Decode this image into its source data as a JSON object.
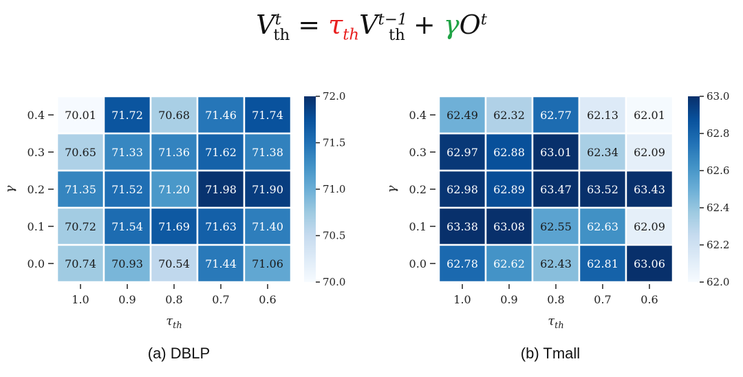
{
  "formula": {
    "lhs_var": "V",
    "lhs_sub": "th",
    "lhs_sup": "t",
    "eq": "=",
    "tau": "τ",
    "tau_sub": "th",
    "rhs_var": "V",
    "rhs_sub": "th",
    "rhs_sup": "t−1",
    "plus": "+",
    "gamma": "γ",
    "o_var": "O",
    "o_sup": "t",
    "tau_color": "#e8201f",
    "gamma_color": "#1fa345"
  },
  "colormap": "Blues",
  "chart_data": [
    {
      "type": "heatmap",
      "caption": "(a) DBLP",
      "xlabel": "τ_th",
      "ylabel": "γ",
      "x_categories": [
        "1.0",
        "0.9",
        "0.8",
        "0.7",
        "0.6"
      ],
      "y_categories": [
        "0.4",
        "0.3",
        "0.2",
        "0.1",
        "0.0"
      ],
      "values": [
        [
          70.01,
          71.72,
          70.68,
          71.46,
          71.74
        ],
        [
          70.65,
          71.33,
          71.36,
          71.62,
          71.38
        ],
        [
          71.35,
          71.52,
          71.2,
          71.98,
          71.9
        ],
        [
          70.72,
          71.54,
          71.69,
          71.63,
          71.4
        ],
        [
          70.74,
          70.93,
          70.54,
          71.44,
          71.06
        ]
      ],
      "cell_labels": [
        [
          "70.01",
          "71.72",
          "70.68",
          "71.46",
          "71.74"
        ],
        [
          "70.65",
          "71.33",
          "71.36",
          "71.62",
          "71.38"
        ],
        [
          "71.35",
          "71.52",
          "71.20",
          "71.98",
          "71.90"
        ],
        [
          "70.72",
          "71.54",
          "71.69",
          "71.63",
          "71.40"
        ],
        [
          "70.74",
          "70.93",
          "70.54",
          "71.44",
          "71.06"
        ]
      ],
      "vmin": 70.0,
      "vmax": 72.0,
      "colorbar_ticks": [
        70.0,
        70.5,
        71.0,
        71.5,
        72.0
      ],
      "colorbar_labels": [
        "70.0",
        "70.5",
        "71.0",
        "71.5",
        "72.0"
      ]
    },
    {
      "type": "heatmap",
      "caption": "(b) Tmall",
      "xlabel": "τ_th",
      "ylabel": "γ",
      "x_categories": [
        "1.0",
        "0.9",
        "0.8",
        "0.7",
        "0.6"
      ],
      "y_categories": [
        "0.4",
        "0.3",
        "0.2",
        "0.1",
        "0.0"
      ],
      "values": [
        [
          62.49,
          62.32,
          62.77,
          62.13,
          62.01
        ],
        [
          62.97,
          62.88,
          63.01,
          62.34,
          62.09
        ],
        [
          62.98,
          62.89,
          63.47,
          63.52,
          63.43
        ],
        [
          63.38,
          63.08,
          62.55,
          62.63,
          62.09
        ],
        [
          62.78,
          62.62,
          62.43,
          62.81,
          63.06
        ]
      ],
      "cell_labels": [
        [
          "62.49",
          "62.32",
          "62.77",
          "62.13",
          "62.01"
        ],
        [
          "62.97",
          "62.88",
          "63.01",
          "62.34",
          "62.09"
        ],
        [
          "62.98",
          "62.89",
          "63.47",
          "63.52",
          "63.43"
        ],
        [
          "63.38",
          "63.08",
          "62.55",
          "62.63",
          "62.09"
        ],
        [
          "62.78",
          "62.62",
          "62.43",
          "62.81",
          "63.06"
        ]
      ],
      "vmin": 62.0,
      "vmax": 63.0,
      "colorbar_ticks": [
        62.0,
        62.2,
        62.4,
        62.6,
        62.8,
        63.0
      ],
      "colorbar_labels": [
        "62.0",
        "62.2",
        "62.4",
        "62.6",
        "62.8",
        "63.0"
      ]
    }
  ]
}
